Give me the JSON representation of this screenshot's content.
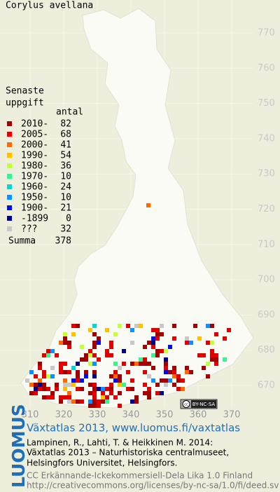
{
  "title": "Corylus avellana",
  "legend": {
    "heading": [
      "Senaste",
      "uppgift"
    ],
    "count_header": "antal",
    "items": [
      {
        "label": "2010-",
        "count": 82,
        "color": "#a00000"
      },
      {
        "label": "2005-",
        "count": 68,
        "color": "#e00000"
      },
      {
        "label": "2000-",
        "count": 41,
        "color": "#ff6a00"
      },
      {
        "label": "1990-",
        "count": 54,
        "color": "#ffc000"
      },
      {
        "label": "1980-",
        "count": 36,
        "color": "#c4ff3c"
      },
      {
        "label": "1970-",
        "count": 10,
        "color": "#40f090"
      },
      {
        "label": "1960-",
        "count": 24,
        "color": "#00d8d8"
      },
      {
        "label": "1950-",
        "count": 10,
        "color": "#1090ff"
      },
      {
        "label": "1900-",
        "count": 21,
        "color": "#0010e0"
      },
      {
        "label": "-1899",
        "count": 0,
        "color": "#000080"
      },
      {
        "label": "???",
        "count": 32,
        "color": "#c8c8c8"
      }
    ],
    "total_label": "Summa",
    "total": 378
  },
  "map": {
    "yticks": [
      770,
      760,
      750,
      740,
      730,
      720,
      710,
      700,
      690,
      680,
      670
    ],
    "xticks": [
      310,
      320,
      330,
      340,
      350,
      360,
      370
    ],
    "license_badge": {
      "icon": "cc",
      "text": "BY-NC-SA"
    }
  },
  "footer": {
    "brand": "LUOMUS",
    "title": "Växtatlas 2013, www.luomus.fi/vaxtatlas",
    "citation": [
      "Lampinen, R., Lahti, T. & Heikkinen M. 2014:",
      "Växtatlas 2013 – Naturhistoriska centralmuseet,",
      "Helsingfors Universitet, Helsingfors."
    ],
    "license": [
      "CC Erkännande-Ickekommersiell-Dela Lika 1.0 Finland",
      "http://creativecommons.org/licenses/by-nc-sa/1.0/fi/deed.sv"
    ]
  }
}
